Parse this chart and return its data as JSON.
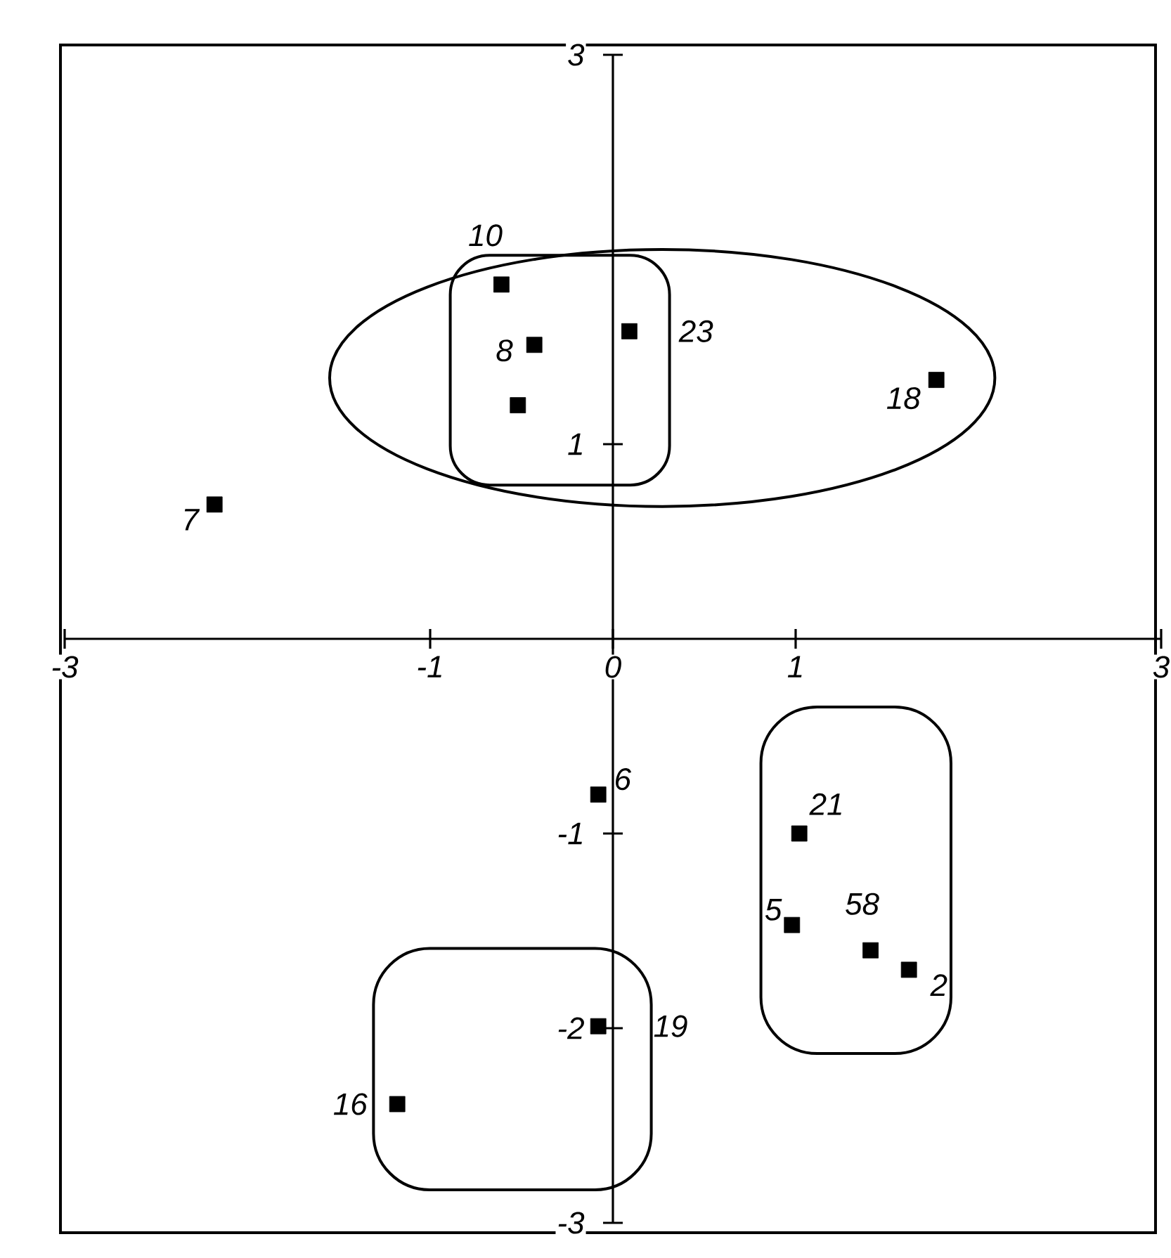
{
  "chart_data": {
    "type": "scatter",
    "marker": "square",
    "xlim": [
      -3,
      3
    ],
    "ylim": [
      -3,
      3
    ],
    "xticks": [
      -3,
      -1,
      0,
      1,
      3
    ],
    "yticks": [
      -3,
      -2,
      -1,
      1,
      3
    ],
    "series": [
      {
        "color": "#000000",
        "x": [
          -0.61,
          -0.43,
          -0.52,
          0.09,
          1.77,
          -2.18,
          -0.08,
          1.02,
          0.98,
          1.41,
          1.62,
          -0.08,
          -1.18
        ],
        "values": [
          1.82,
          1.51,
          1.2,
          1.58,
          1.33,
          0.69,
          -0.8,
          -1.0,
          -1.47,
          -1.6,
          -1.7,
          -1.99,
          -2.39
        ]
      }
    ],
    "annotations": [
      {
        "text": "10",
        "x": -0.61,
        "y": 1.82
      },
      {
        "text": "8",
        "x": -0.43,
        "y": 1.51
      },
      {
        "text": "23",
        "x": 0.09,
        "y": 1.58
      },
      {
        "text": "18",
        "x": 1.77,
        "y": 1.33
      },
      {
        "text": "7",
        "x": -2.18,
        "y": 0.69
      },
      {
        "text": "6",
        "x": -0.08,
        "y": -0.8
      },
      {
        "text": "21",
        "x": 1.02,
        "y": -1.0
      },
      {
        "text": "5",
        "x": 0.98,
        "y": -1.47
      },
      {
        "text": "58",
        "x": 1.41,
        "y": -1.6
      },
      {
        "text": "2",
        "x": 1.62,
        "y": -1.7
      },
      {
        "text": "19",
        "x": -0.08,
        "y": -1.99
      },
      {
        "text": "16",
        "x": -1.18,
        "y": -2.39
      }
    ]
  }
}
